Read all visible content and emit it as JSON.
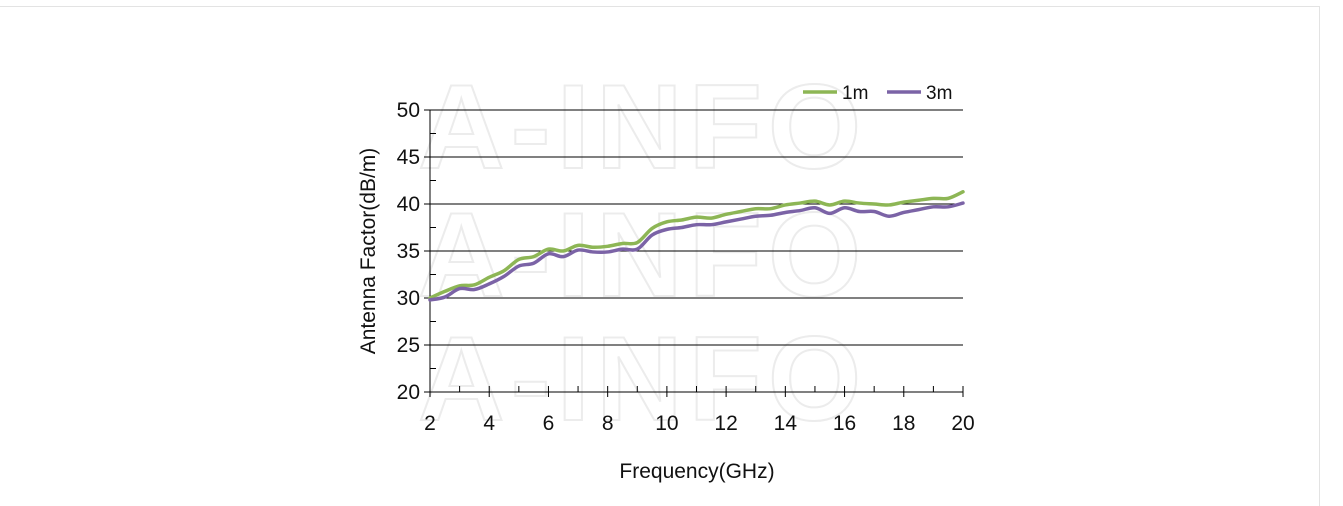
{
  "chart_data": {
    "type": "line",
    "title": "",
    "xlabel": "Frequency(GHz)",
    "ylabel": "Antenna Factor(dB/m)",
    "xlim": [
      2,
      20
    ],
    "ylim": [
      20,
      50
    ],
    "x_ticks": [
      2,
      4,
      6,
      8,
      10,
      12,
      14,
      16,
      18,
      20
    ],
    "y_ticks": [
      20,
      25,
      30,
      35,
      40,
      45,
      50
    ],
    "grid": "horizontal",
    "legend_position": "top-right",
    "watermark": "A-INFO",
    "series": [
      {
        "name": "1m",
        "color": "#8db655",
        "points": [
          [
            2,
            30.0
          ],
          [
            2.5,
            30.7
          ],
          [
            3,
            31.3
          ],
          [
            3.5,
            31.4
          ],
          [
            4,
            32.2
          ],
          [
            4.5,
            32.9
          ],
          [
            5,
            34.1
          ],
          [
            5.5,
            34.4
          ],
          [
            6,
            35.2
          ],
          [
            6.5,
            35.0
          ],
          [
            7,
            35.6
          ],
          [
            7.5,
            35.4
          ],
          [
            8,
            35.5
          ],
          [
            8.5,
            35.8
          ],
          [
            9,
            35.9
          ],
          [
            9.5,
            37.4
          ],
          [
            10,
            38.1
          ],
          [
            10.5,
            38.3
          ],
          [
            11,
            38.6
          ],
          [
            11.5,
            38.5
          ],
          [
            12,
            38.9
          ],
          [
            12.5,
            39.2
          ],
          [
            13,
            39.5
          ],
          [
            13.5,
            39.5
          ],
          [
            14,
            39.9
          ],
          [
            14.5,
            40.1
          ],
          [
            15,
            40.3
          ],
          [
            15.5,
            39.9
          ],
          [
            16,
            40.3
          ],
          [
            16.5,
            40.1
          ],
          [
            17,
            40.0
          ],
          [
            17.5,
            39.9
          ],
          [
            18,
            40.2
          ],
          [
            18.5,
            40.4
          ],
          [
            19,
            40.6
          ],
          [
            19.5,
            40.6
          ],
          [
            20,
            41.3
          ]
        ]
      },
      {
        "name": "3m",
        "color": "#7b63a6",
        "points": [
          [
            2,
            29.8
          ],
          [
            2.5,
            30.1
          ],
          [
            3,
            31.0
          ],
          [
            3.5,
            30.9
          ],
          [
            4,
            31.5
          ],
          [
            4.5,
            32.3
          ],
          [
            5,
            33.4
          ],
          [
            5.5,
            33.7
          ],
          [
            6,
            34.7
          ],
          [
            6.5,
            34.4
          ],
          [
            7,
            35.1
          ],
          [
            7.5,
            34.9
          ],
          [
            8,
            34.9
          ],
          [
            8.5,
            35.2
          ],
          [
            9,
            35.2
          ],
          [
            9.5,
            36.7
          ],
          [
            10,
            37.3
          ],
          [
            10.5,
            37.5
          ],
          [
            11,
            37.8
          ],
          [
            11.5,
            37.8
          ],
          [
            12,
            38.1
          ],
          [
            12.5,
            38.4
          ],
          [
            13,
            38.7
          ],
          [
            13.5,
            38.8
          ],
          [
            14,
            39.1
          ],
          [
            14.5,
            39.3
          ],
          [
            15,
            39.6
          ],
          [
            15.5,
            39.0
          ],
          [
            16,
            39.6
          ],
          [
            16.5,
            39.2
          ],
          [
            17,
            39.2
          ],
          [
            17.5,
            38.7
          ],
          [
            18,
            39.1
          ],
          [
            18.5,
            39.4
          ],
          [
            19,
            39.7
          ],
          [
            19.5,
            39.7
          ],
          [
            20,
            40.1
          ]
        ]
      }
    ]
  }
}
